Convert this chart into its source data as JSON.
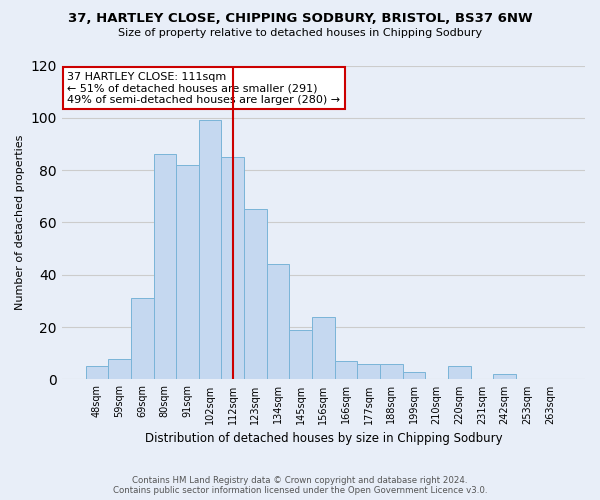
{
  "title": "37, HARTLEY CLOSE, CHIPPING SODBURY, BRISTOL, BS37 6NW",
  "subtitle": "Size of property relative to detached houses in Chipping Sodbury",
  "xlabel": "Distribution of detached houses by size in Chipping Sodbury",
  "ylabel": "Number of detached properties",
  "footnote1": "Contains HM Land Registry data © Crown copyright and database right 2024.",
  "footnote2": "Contains public sector information licensed under the Open Government Licence v3.0.",
  "bin_labels": [
    "48sqm",
    "59sqm",
    "69sqm",
    "80sqm",
    "91sqm",
    "102sqm",
    "112sqm",
    "123sqm",
    "134sqm",
    "145sqm",
    "156sqm",
    "166sqm",
    "177sqm",
    "188sqm",
    "199sqm",
    "210sqm",
    "220sqm",
    "231sqm",
    "242sqm",
    "253sqm",
    "263sqm"
  ],
  "bar_heights": [
    5,
    8,
    31,
    86,
    82,
    99,
    85,
    65,
    44,
    19,
    24,
    7,
    6,
    6,
    3,
    0,
    5,
    0,
    2,
    0,
    0
  ],
  "bar_color": "#c5d8f0",
  "bar_edge_color": "#7ab4d8",
  "highlight_bar_index": 6,
  "highlight_line_color": "#cc0000",
  "annotation_title": "37 HARTLEY CLOSE: 111sqm",
  "annotation_line1": "← 51% of detached houses are smaller (291)",
  "annotation_line2": "49% of semi-detached houses are larger (280) →",
  "annotation_box_edge": "#cc0000",
  "ylim": [
    0,
    120
  ],
  "yticks": [
    0,
    20,
    40,
    60,
    80,
    100,
    120
  ],
  "grid_color": "#cccccc",
  "background_color": "#e8eef8",
  "plot_bg_color": "#e8eef8"
}
